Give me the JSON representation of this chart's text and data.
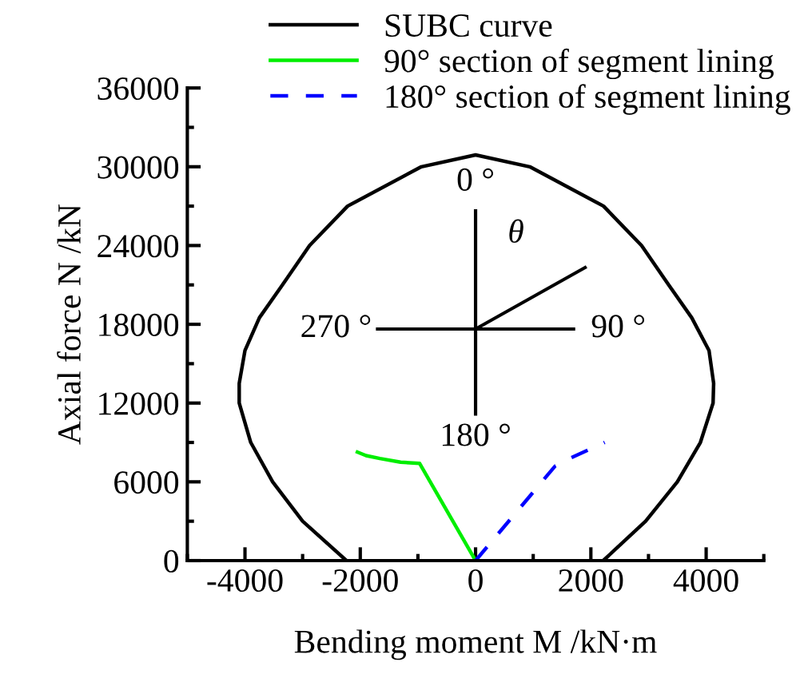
{
  "chart_data": {
    "type": "line",
    "xlabel": "Bending moment M /kN·m",
    "ylabel": "Axial force N /kN",
    "xlim": [
      -5000,
      5000
    ],
    "xticks": [
      -4000,
      -2000,
      0,
      2000,
      4000
    ],
    "ylim": [
      0,
      36000
    ],
    "yticks": [
      0,
      6000,
      12000,
      18000,
      24000,
      30000,
      36000
    ],
    "grid": false,
    "legend": "top",
    "annotations": [
      "0 °",
      "90 °",
      "180 °",
      "270 °",
      "θ"
    ],
    "series": [
      {
        "name": "SUBC curve",
        "color": "#000000",
        "line_style": "solid",
        "x": [
          -2240,
          -3000,
          -3520,
          -3900,
          -4100,
          -4100,
          -4000,
          -3750,
          -3350,
          -2880,
          -2220,
          -940,
          0,
          940,
          2220,
          2880,
          3350,
          3750,
          4050,
          4130,
          4120,
          3900,
          3500,
          2950,
          2215
        ],
        "values": [
          0,
          3000,
          6000,
          9000,
          12000,
          13500,
          16000,
          18500,
          21000,
          24000,
          27000,
          30000,
          30900,
          30000,
          27000,
          24000,
          21000,
          18500,
          16000,
          13500,
          12000,
          9000,
          6000,
          3000,
          0
        ]
      },
      {
        "name": "90° section of segment lining",
        "color": "#00ee00",
        "line_style": "solid",
        "x": [
          0,
          -970,
          -1300,
          -1660,
          -1900,
          -2050
        ],
        "values": [
          0,
          7400,
          7500,
          7780,
          8000,
          8270
        ]
      },
      {
        "name": "180° section of segment lining",
        "color": "#0000ff",
        "line_style": "dashed",
        "x": [
          0,
          1380,
          1630,
          2240
        ],
        "values": [
          0,
          7200,
          7780,
          9000
        ]
      }
    ]
  }
}
